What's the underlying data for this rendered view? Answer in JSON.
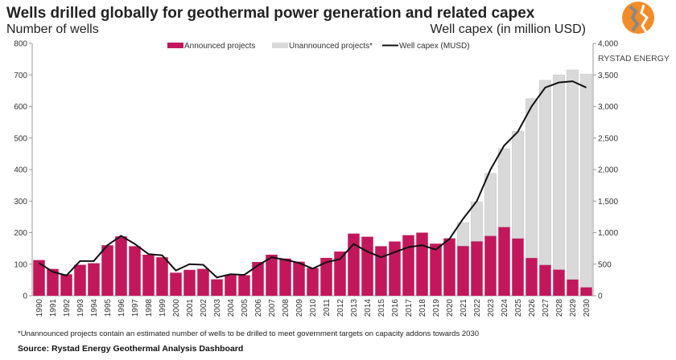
{
  "chart_data": {
    "type": "bar",
    "title": "Wells drilled globally for geothermal power generation and related capex",
    "ylabel": "Number of wells",
    "y2label": "Well capex (in million USD)",
    "ylim": [
      0,
      800
    ],
    "y2lim": [
      0,
      4000
    ],
    "yticks": [
      "0",
      "100",
      "200",
      "300",
      "400",
      "500",
      "600",
      "700",
      "800"
    ],
    "y2ticks": [
      "0",
      "500",
      "1,000",
      "1,500",
      "2,000",
      "2,500",
      "3,000",
      "3,500",
      "4,000"
    ],
    "stacked": true,
    "legend_position": "top",
    "categories": [
      "1990",
      "1991",
      "1992",
      "1993",
      "1994",
      "1995",
      "1996",
      "1997",
      "1998",
      "1999",
      "2000",
      "2001",
      "2002",
      "2003",
      "2004",
      "2005",
      "2006",
      "2007",
      "2008",
      "2009",
      "2010",
      "2011",
      "2012",
      "2013",
      "2014",
      "2015",
      "2016",
      "2017",
      "2018",
      "2019",
      "2020",
      "2021",
      "2022",
      "2023",
      "2024",
      "2025",
      "2026",
      "2027",
      "2028",
      "2029",
      "2030"
    ],
    "series": [
      {
        "name": "Announced projects",
        "type": "bar",
        "axis": "left",
        "color": "#c2185b",
        "values": [
          113,
          85,
          68,
          98,
          103,
          160,
          188,
          157,
          130,
          122,
          73,
          82,
          85,
          52,
          65,
          65,
          107,
          130,
          118,
          108,
          88,
          120,
          140,
          197,
          187,
          157,
          172,
          192,
          200,
          165,
          182,
          158,
          173,
          190,
          218,
          182,
          120,
          98,
          83,
          52,
          27
        ]
      },
      {
        "name": "Unannounced projects*",
        "type": "bar",
        "axis": "left",
        "color": "#d9d9d9",
        "values": [
          0,
          0,
          0,
          0,
          0,
          0,
          0,
          0,
          0,
          0,
          0,
          0,
          0,
          0,
          0,
          0,
          0,
          0,
          0,
          0,
          0,
          0,
          0,
          0,
          0,
          0,
          0,
          0,
          0,
          0,
          1,
          74,
          125,
          198,
          248,
          340,
          505,
          585,
          617,
          664,
          676
        ]
      },
      {
        "name": "Well capex (MUSD)",
        "type": "line",
        "axis": "right",
        "color": "#111111",
        "values": [
          520,
          380,
          320,
          550,
          550,
          800,
          950,
          820,
          660,
          640,
          400,
          500,
          490,
          290,
          340,
          330,
          480,
          610,
          570,
          520,
          430,
          530,
          580,
          820,
          700,
          610,
          690,
          770,
          800,
          730,
          900,
          1220,
          1500,
          2000,
          2380,
          2600,
          3000,
          3300,
          3380,
          3400,
          3300
        ]
      }
    ]
  },
  "footnote": "*Unannounced projects contain an estimated number of wells to be drilled to meet government targets on capacity addons towards 2030",
  "source": "Source: Rystad Energy Geothermal Analysis Dashboard",
  "logo": {
    "text": "RYSTAD ENERGY",
    "color": "#f28c28"
  }
}
